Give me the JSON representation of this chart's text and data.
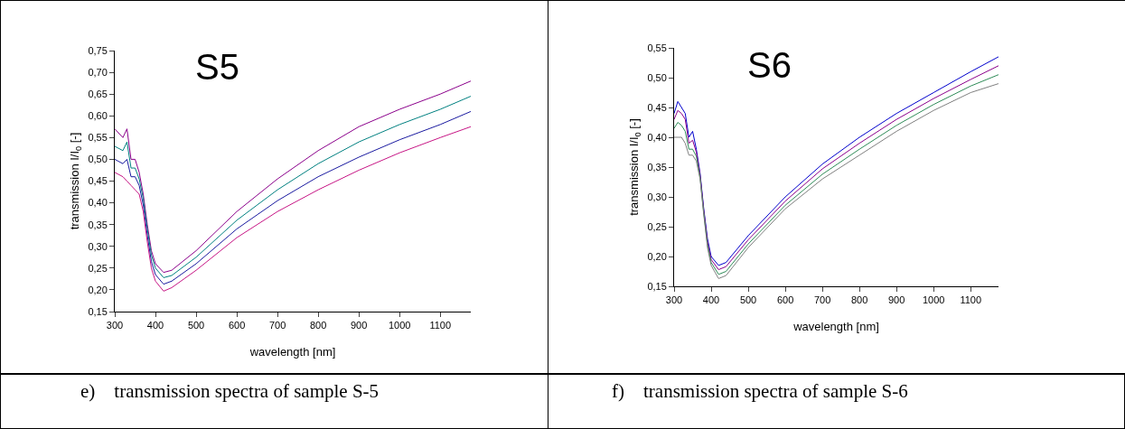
{
  "chart_data": [
    {
      "type": "line",
      "xlabel": "wavelength [nm]",
      "ylabel": "transmission I/I$_{0}$ [-]",
      "annotations": [
        "S5",
        "e)    transmission spectra of sample S-5"
      ],
      "xlim": [
        300,
        1175
      ],
      "xticks": [
        300,
        400,
        500,
        600,
        700,
        800,
        900,
        1000,
        1100
      ],
      "ylim": [
        0.15,
        0.75
      ],
      "yticks": [
        {
          "value": 0.15,
          "label": "0,15"
        },
        {
          "value": 0.2,
          "label": "0,20"
        },
        {
          "value": 0.25,
          "label": "0,25"
        },
        {
          "value": 0.3,
          "label": "0,30"
        },
        {
          "value": 0.35,
          "label": "0,35"
        },
        {
          "value": 0.4,
          "label": "0,40"
        },
        {
          "value": 0.45,
          "label": "0,45"
        },
        {
          "value": 0.5,
          "label": "0,50"
        },
        {
          "value": 0.55,
          "label": "0,55"
        },
        {
          "value": 0.6,
          "label": "0,60"
        },
        {
          "value": 0.65,
          "label": "0,65"
        },
        {
          "value": 0.7,
          "label": "0,70"
        },
        {
          "value": 0.75,
          "label": "0,75"
        }
      ],
      "grid": false,
      "marker": "none",
      "line_style": "solid",
      "x": [
        300,
        320,
        330,
        340,
        350,
        360,
        370,
        380,
        390,
        400,
        420,
        440,
        500,
        600,
        700,
        800,
        900,
        1000,
        1100,
        1175
      ],
      "series": [
        {
          "color": "#8b008b",
          "values": [
            0.57,
            0.55,
            0.57,
            0.5,
            0.5,
            0.47,
            0.42,
            0.35,
            0.29,
            0.26,
            0.24,
            0.245,
            0.29,
            0.38,
            0.455,
            0.52,
            0.575,
            0.615,
            0.65,
            0.68
          ]
        },
        {
          "color": "#008080",
          "values": [
            0.53,
            0.52,
            0.54,
            0.48,
            0.48,
            0.455,
            0.41,
            0.34,
            0.28,
            0.25,
            0.228,
            0.233,
            0.275,
            0.36,
            0.43,
            0.49,
            0.54,
            0.58,
            0.615,
            0.645
          ]
        },
        {
          "color": "#1a1aa0",
          "values": [
            0.5,
            0.49,
            0.5,
            0.46,
            0.46,
            0.44,
            0.395,
            0.325,
            0.265,
            0.235,
            0.213,
            0.22,
            0.26,
            0.34,
            0.405,
            0.46,
            0.505,
            0.545,
            0.58,
            0.61
          ]
        },
        {
          "color": "#c71585",
          "values": [
            0.47,
            0.46,
            0.45,
            0.44,
            0.43,
            0.42,
            0.38,
            0.31,
            0.25,
            0.22,
            0.197,
            0.205,
            0.245,
            0.32,
            0.38,
            0.43,
            0.475,
            0.515,
            0.55,
            0.575
          ]
        }
      ]
    },
    {
      "type": "line",
      "xlabel": "wavelength [nm]",
      "ylabel": "transmission I/I$_{0}$ [-]",
      "annotations": [
        "S6",
        "f)    transmission spectra of sample S-6"
      ],
      "xlim": [
        300,
        1175
      ],
      "xticks": [
        300,
        400,
        500,
        600,
        700,
        800,
        900,
        1000,
        1100
      ],
      "ylim": [
        0.15,
        0.55
      ],
      "yticks": [
        {
          "value": 0.15,
          "label": "0,15"
        },
        {
          "value": 0.2,
          "label": "0,20"
        },
        {
          "value": 0.25,
          "label": "0,25"
        },
        {
          "value": 0.3,
          "label": "0,30"
        },
        {
          "value": 0.35,
          "label": "0,35"
        },
        {
          "value": 0.4,
          "label": "0,40"
        },
        {
          "value": 0.45,
          "label": "0,45"
        },
        {
          "value": 0.5,
          "label": "0,50"
        },
        {
          "value": 0.55,
          "label": "0,55"
        }
      ],
      "grid": false,
      "marker": "none",
      "line_style": "solid",
      "x": [
        300,
        310,
        320,
        330,
        340,
        350,
        360,
        370,
        380,
        390,
        400,
        420,
        440,
        500,
        600,
        700,
        800,
        900,
        1000,
        1100,
        1175
      ],
      "series": [
        {
          "color": "#0000cd",
          "values": [
            0.44,
            0.46,
            0.45,
            0.44,
            0.4,
            0.41,
            0.38,
            0.34,
            0.28,
            0.23,
            0.2,
            0.185,
            0.19,
            0.235,
            0.3,
            0.355,
            0.4,
            0.44,
            0.475,
            0.51,
            0.535
          ]
        },
        {
          "color": "#8b008b",
          "values": [
            0.43,
            0.445,
            0.44,
            0.43,
            0.39,
            0.395,
            0.375,
            0.337,
            0.277,
            0.225,
            0.195,
            0.178,
            0.183,
            0.228,
            0.293,
            0.347,
            0.39,
            0.43,
            0.465,
            0.497,
            0.52
          ]
        },
        {
          "color": "#2e8b57",
          "values": [
            0.415,
            0.425,
            0.42,
            0.41,
            0.38,
            0.38,
            0.368,
            0.333,
            0.273,
            0.22,
            0.19,
            0.17,
            0.175,
            0.221,
            0.286,
            0.338,
            0.38,
            0.42,
            0.455,
            0.486,
            0.505
          ]
        },
        {
          "color": "#808080",
          "values": [
            0.4,
            0.4,
            0.4,
            0.39,
            0.37,
            0.37,
            0.36,
            0.33,
            0.27,
            0.215,
            0.185,
            0.163,
            0.168,
            0.215,
            0.28,
            0.33,
            0.37,
            0.41,
            0.445,
            0.475,
            0.49
          ]
        }
      ]
    }
  ]
}
